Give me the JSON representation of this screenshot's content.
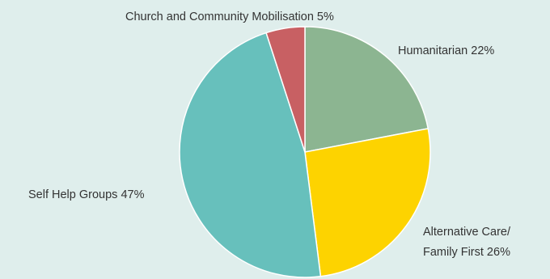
{
  "chart_data": {
    "type": "pie",
    "start_angle_deg": 0,
    "direction": "clockwise",
    "slices": [
      {
        "label": "Humanitarian  22%",
        "value": 22,
        "color": "#8cb591"
      },
      {
        "label": "Alternative Care/",
        "label2": "Family First  26%",
        "value": 26,
        "color": "#fdd300"
      },
      {
        "label": "Self Help Groups  47%",
        "value": 47,
        "color": "#67c0bc"
      },
      {
        "label": "Church and Community Mobilisation  5%",
        "value": 5,
        "color": "#c86063"
      }
    ]
  },
  "colors": {
    "background": "#dfeeec",
    "separator": "#ffffff",
    "label_text": "#333333"
  }
}
